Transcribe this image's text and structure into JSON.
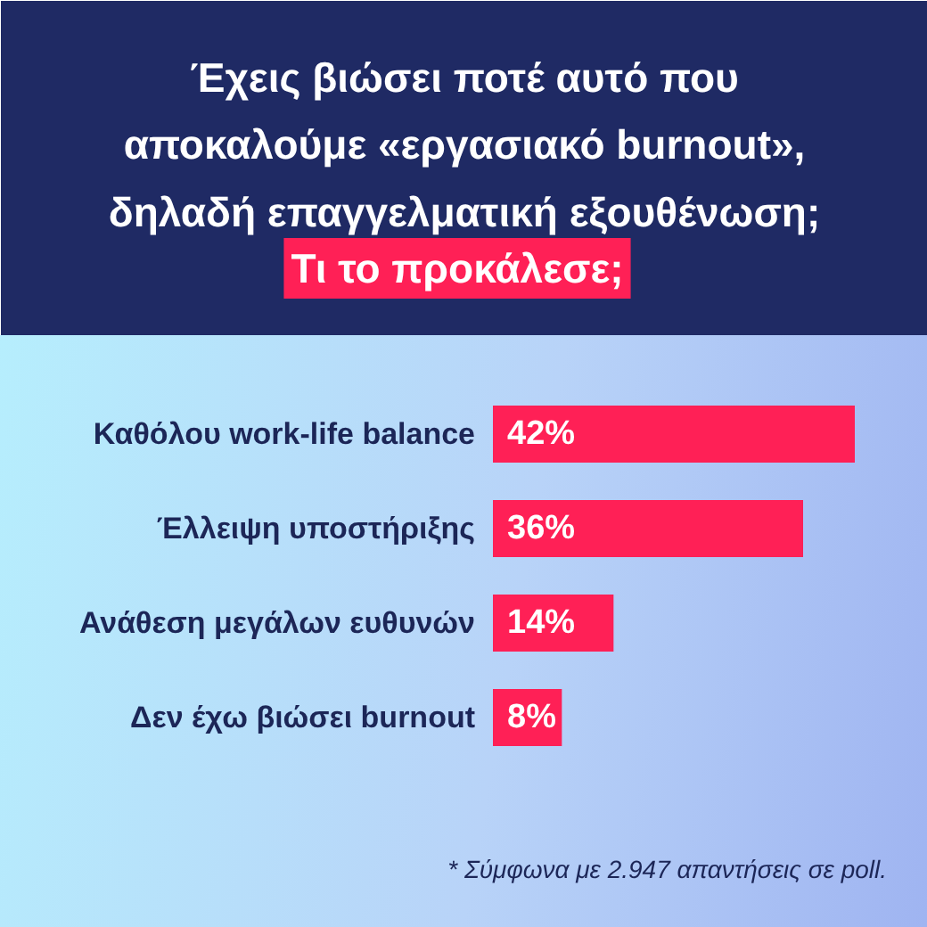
{
  "chart_data": {
    "type": "bar",
    "orientation": "horizontal",
    "title": "Έχεις βιώσει ποτέ αυτό που αποκαλούμε «εργασιακό burnout», δηλαδή επαγγελματική εξουθένωση;",
    "subtitle": "Τι το προκάλεσε;",
    "categories": [
      "Καθόλου work-life balance",
      "Έλλειψη υποστήριξης",
      "Ανάθεση μεγάλων ευθυνών",
      "Δεν έχω βιώσει burnout"
    ],
    "values": [
      42,
      36,
      14,
      8
    ],
    "color": "#ff2056",
    "value_labels": [
      "42%",
      "36%",
      "14%",
      "8%"
    ],
    "annotations": [
      "* Σύμφωνα με 2.947 απαντήσεις σε poll."
    ],
    "tick_labels": false
  }
}
